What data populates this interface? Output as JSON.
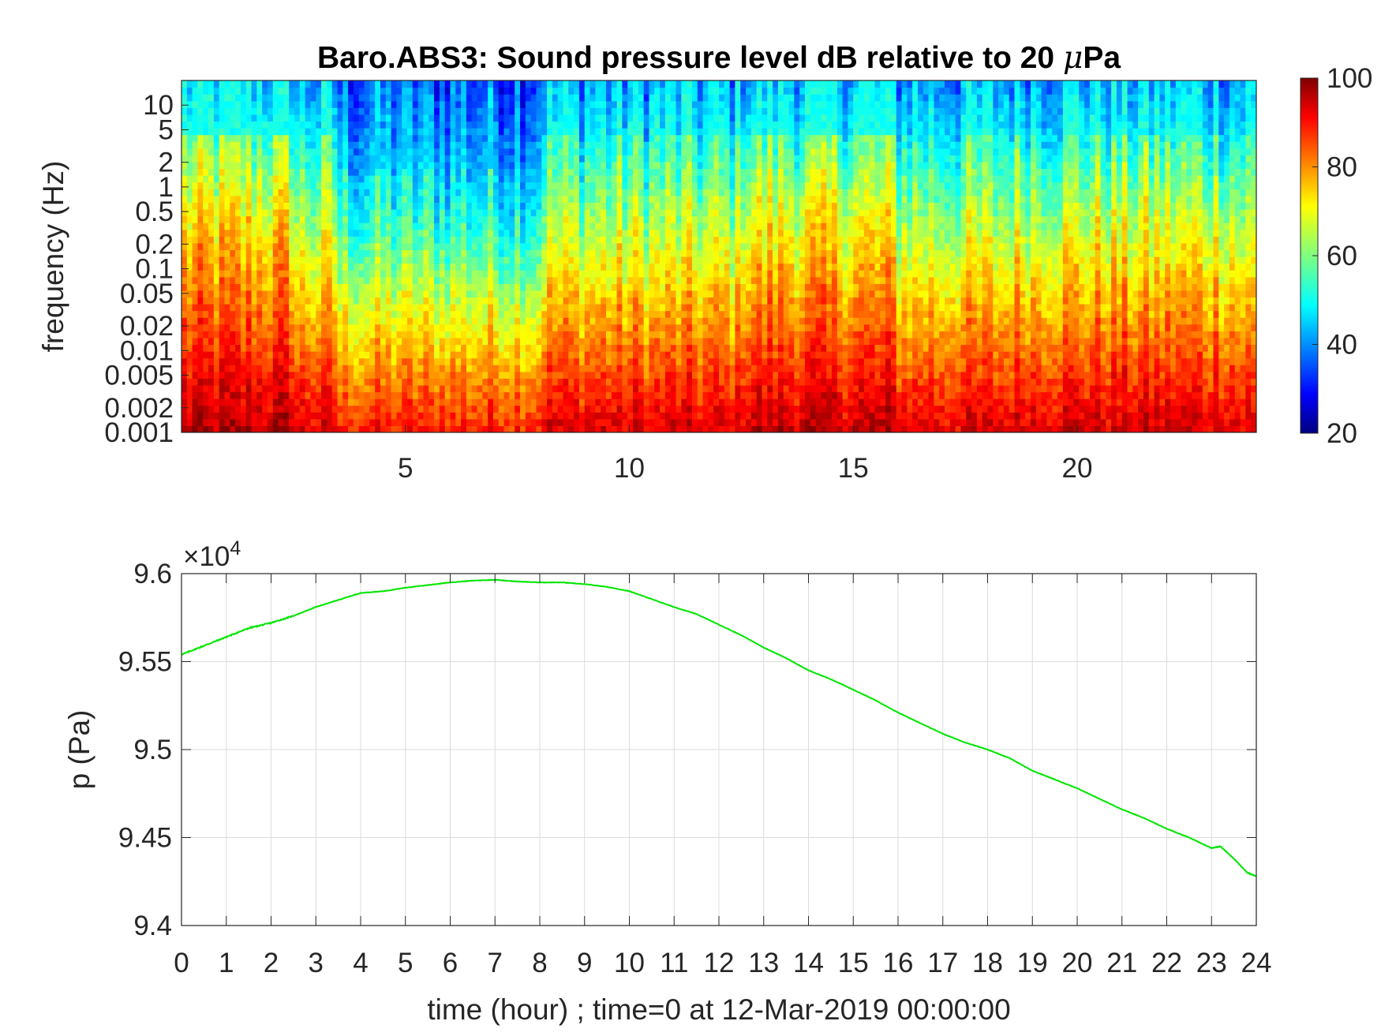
{
  "chart_data": [
    {
      "type": "heatmap",
      "title": "Baro.ABS3: Sound pressure level dB relative to 20 μPa",
      "title_prefix": "Baro.ABS3: Sound pressure level dB relative to 20 ",
      "title_mu": "μ",
      "title_suffix": "Pa",
      "ylabel": "frequency (Hz)",
      "xlabel": "",
      "y_scale": "log",
      "x_range": [
        0,
        24
      ],
      "y_range": [
        0.001,
        20
      ],
      "x_ticks": [
        5,
        10,
        15,
        20
      ],
      "x_tick_labels": [
        "5",
        "10",
        "15",
        "20"
      ],
      "y_ticks": [
        0.001,
        0.002,
        0.005,
        0.01,
        0.02,
        0.05,
        0.1,
        0.2,
        0.5,
        1,
        2,
        5,
        10
      ],
      "y_tick_labels": [
        "0.001",
        "0.002",
        "0.005",
        "0.01",
        "0.02",
        "0.05",
        "0.1",
        "0.2",
        "0.5",
        "1",
        "2",
        "5",
        "10"
      ],
      "colormap": "jet",
      "color_range": [
        20,
        100
      ],
      "colorbar_ticks": [
        20,
        40,
        60,
        80,
        100
      ],
      "colorbar_tick_labels": [
        "20",
        "40",
        "60",
        "80",
        "100"
      ],
      "grid": false
    },
    {
      "type": "line",
      "xlabel": "time (hour) ; time=0 at 12-Mar-2019 00:00:00",
      "ylabel": "p (Pa)",
      "y_multiplier": "×10",
      "y_multiplier_exponent": "4",
      "x_range": [
        0,
        24
      ],
      "y_range": [
        94000,
        96000
      ],
      "x_ticks": [
        0,
        1,
        2,
        3,
        4,
        5,
        6,
        7,
        8,
        9,
        10,
        11,
        12,
        13,
        14,
        15,
        16,
        17,
        18,
        19,
        20,
        21,
        22,
        23,
        24
      ],
      "x_tick_labels": [
        "0",
        "1",
        "2",
        "3",
        "4",
        "5",
        "6",
        "7",
        "8",
        "9",
        "10",
        "11",
        "12",
        "13",
        "14",
        "15",
        "16",
        "17",
        "18",
        "19",
        "20",
        "21",
        "22",
        "23",
        "24"
      ],
      "y_ticks": [
        94000,
        94500,
        95000,
        95500,
        96000
      ],
      "y_tick_labels": [
        "9.4",
        "9.45",
        "9.5",
        "9.55",
        "9.6"
      ],
      "grid": true,
      "series": [
        {
          "color": "#00e600",
          "x": [
            0,
            0.5,
            1,
            1.5,
            2,
            2.5,
            3,
            3.5,
            4,
            4.5,
            5,
            5.5,
            6,
            6.5,
            7,
            7.5,
            8,
            8.5,
            9,
            9.5,
            10,
            10.5,
            11,
            11.5,
            12,
            12.5,
            13,
            13.5,
            14,
            14.5,
            15,
            15.5,
            16,
            16.5,
            17,
            17.5,
            18,
            18.5,
            19,
            19.5,
            20,
            20.5,
            21,
            21.5,
            22,
            22.5,
            23,
            23.2,
            23.5,
            23.8,
            24
          ],
          "y": [
            95540,
            95590,
            95640,
            95690,
            95720,
            95760,
            95810,
            95850,
            95890,
            95900,
            95920,
            95935,
            95950,
            95960,
            95965,
            95955,
            95950,
            95950,
            95940,
            95925,
            95900,
            95855,
            95810,
            95770,
            95710,
            95650,
            95580,
            95520,
            95450,
            95400,
            95340,
            95280,
            95210,
            95150,
            95090,
            95040,
            95000,
            94950,
            94880,
            94830,
            94780,
            94720,
            94660,
            94610,
            94550,
            94500,
            94440,
            94450,
            94380,
            94300,
            94280
          ]
        }
      ]
    }
  ]
}
